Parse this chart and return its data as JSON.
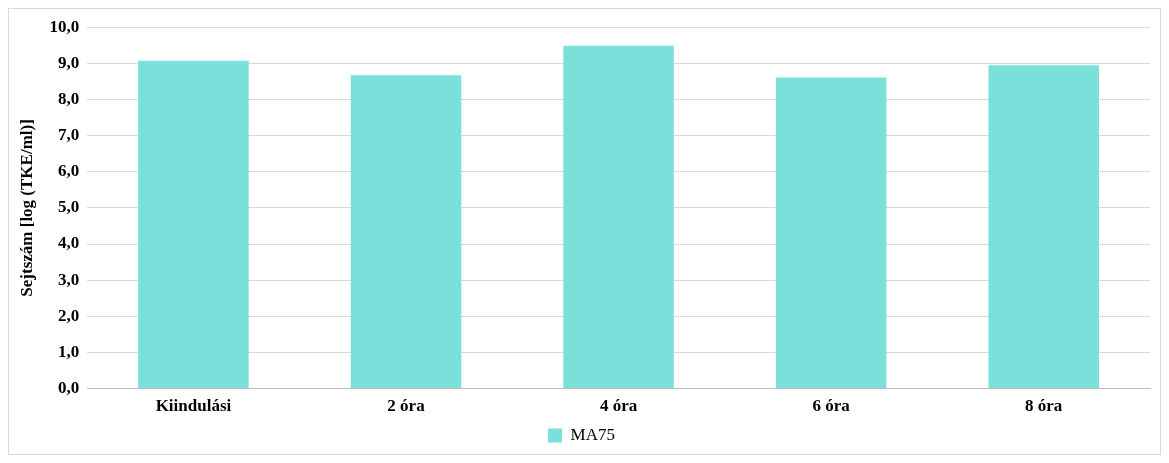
{
  "chart_data": {
    "type": "bar",
    "ylabel": "Sejtszám [log (TKE/ml)]",
    "categories": [
      "Kiindulási",
      "2 óra",
      "4 óra",
      "6 óra",
      "8 óra"
    ],
    "series": [
      {
        "name": "MA75",
        "color": "#7ae1da",
        "values": [
          9.07,
          8.67,
          9.49,
          8.61,
          8.95
        ]
      }
    ],
    "ylim": [
      0,
      10
    ],
    "yticks": [
      {
        "value": 0,
        "label": "0,0"
      },
      {
        "value": 1,
        "label": "1,0"
      },
      {
        "value": 2,
        "label": "2,0"
      },
      {
        "value": 3,
        "label": "3,0"
      },
      {
        "value": 4,
        "label": "4,0"
      },
      {
        "value": 5,
        "label": "5,0"
      },
      {
        "value": 6,
        "label": "6,0"
      },
      {
        "value": 7,
        "label": "7,0"
      },
      {
        "value": 8,
        "label": "8,0"
      },
      {
        "value": 9,
        "label": "9,0"
      },
      {
        "value": 10,
        "label": "10,0"
      }
    ],
    "grid": "y",
    "legend": "bottom"
  }
}
